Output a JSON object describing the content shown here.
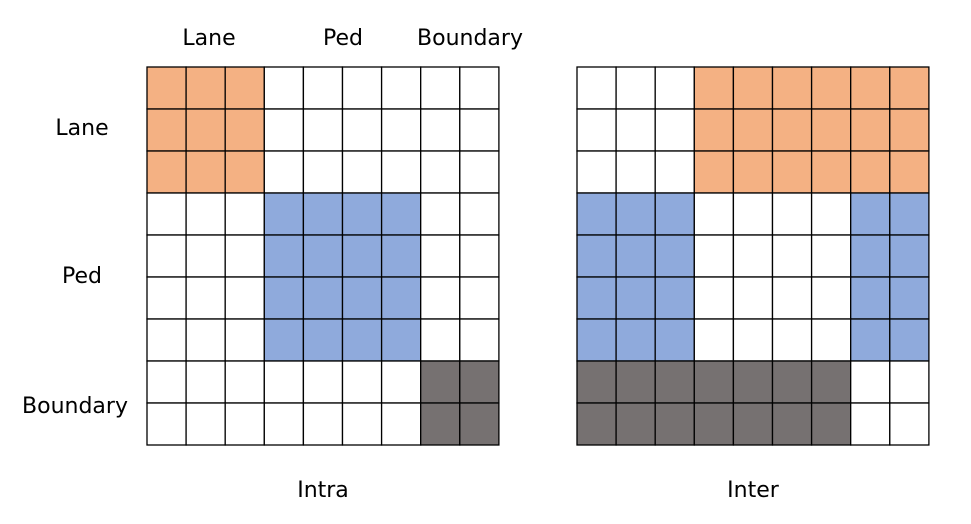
{
  "column_labels": [
    "Lane",
    "Ped",
    "Boundary"
  ],
  "row_labels": [
    "Lane",
    "Ped",
    "Boundary"
  ],
  "group_sizes": [
    3,
    4,
    2
  ],
  "colors": {
    "lane": "#F4B183",
    "ped": "#8FAADC",
    "boundary": "#767171",
    "empty": "#FFFFFF",
    "grid_line": "#000000"
  },
  "matrices": [
    {
      "caption": "Intra",
      "fill_rule": "same-group",
      "description_of_blocks": [
        [
          "lane",
          "",
          ""
        ],
        [
          "",
          "ped",
          ""
        ],
        [
          "",
          "",
          "boundary"
        ]
      ]
    },
    {
      "caption": "Inter",
      "fill_rule": "different-group",
      "description_of_blocks": [
        [
          "",
          "lane",
          "lane"
        ],
        [
          "ped",
          "",
          "ped"
        ],
        [
          "boundary",
          "boundary",
          ""
        ]
      ]
    }
  ]
}
